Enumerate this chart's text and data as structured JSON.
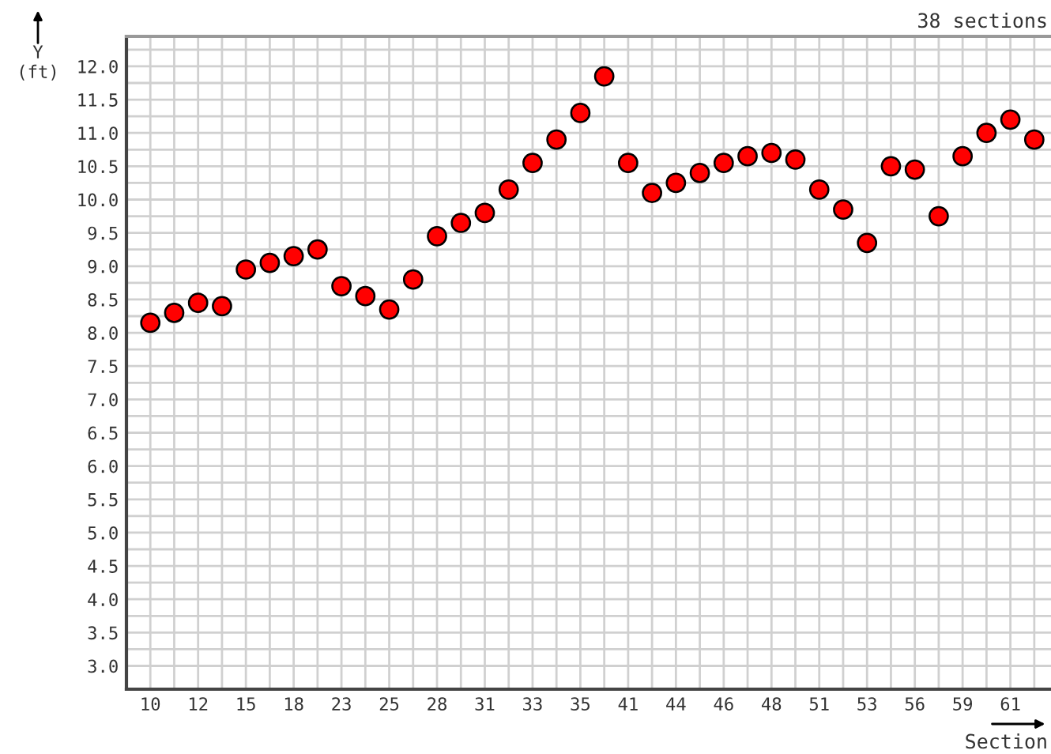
{
  "chart_data": {
    "type": "scatter",
    "ylabel": "Y\n(ft)",
    "xlabel": "Section",
    "annotations": [
      "38 sections"
    ],
    "categories": [
      "10",
      null,
      "12",
      null,
      "15",
      null,
      "18",
      null,
      "23",
      null,
      "25",
      null,
      "28",
      null,
      "31",
      null,
      "33",
      null,
      "35",
      null,
      "41",
      null,
      "44",
      null,
      "46",
      null,
      "48",
      null,
      "51",
      null,
      "53",
      null,
      "56",
      null,
      "59",
      null,
      "61",
      null
    ],
    "series": [
      {
        "color": "#ff0000",
        "values": [
          8.15,
          8.3,
          8.45,
          8.4,
          8.95,
          9.05,
          9.15,
          9.25,
          8.7,
          8.55,
          8.35,
          8.8,
          9.45,
          9.65,
          9.8,
          10.15,
          10.55,
          10.9,
          11.3,
          11.85,
          10.55,
          10.1,
          10.25,
          10.4,
          10.55,
          10.65,
          10.7,
          10.6,
          10.15,
          9.85,
          9.35,
          10.5,
          10.45,
          9.75,
          10.65,
          11.0,
          11.2,
          10.9
        ]
      }
    ],
    "ylim": [
      2.65,
      12.45
    ],
    "yticks": [
      {
        "value": 3,
        "label": "3.0"
      },
      {
        "value": 3.25,
        "label": null
      },
      {
        "value": 3.5,
        "label": "3.5"
      },
      {
        "value": 3.75,
        "label": null
      },
      {
        "value": 4,
        "label": "4.0"
      },
      {
        "value": 4.25,
        "label": null
      },
      {
        "value": 4.5,
        "label": "4.5"
      },
      {
        "value": 4.75,
        "label": null
      },
      {
        "value": 5,
        "label": "5.0"
      },
      {
        "value": 5.25,
        "label": null
      },
      {
        "value": 5.5,
        "label": "5.5"
      },
      {
        "value": 5.75,
        "label": null
      },
      {
        "value": 6,
        "label": "6.0"
      },
      {
        "value": 6.25,
        "label": null
      },
      {
        "value": 6.5,
        "label": "6.5"
      },
      {
        "value": 6.75,
        "label": null
      },
      {
        "value": 7,
        "label": "7.0"
      },
      {
        "value": 7.25,
        "label": null
      },
      {
        "value": 7.5,
        "label": "7.5"
      },
      {
        "value": 7.75,
        "label": null
      },
      {
        "value": 8,
        "label": "8.0"
      },
      {
        "value": 8.25,
        "label": null
      },
      {
        "value": 8.5,
        "label": "8.5"
      },
      {
        "value": 8.75,
        "label": null
      },
      {
        "value": 9,
        "label": "9.0"
      },
      {
        "value": 9.25,
        "label": null
      },
      {
        "value": 9.5,
        "label": "9.5"
      },
      {
        "value": 9.75,
        "label": null
      },
      {
        "value": 10,
        "label": "10.0"
      },
      {
        "value": 10.25,
        "label": null
      },
      {
        "value": 10.5,
        "label": "10.5"
      },
      {
        "value": 10.75,
        "label": null
      },
      {
        "value": 11,
        "label": "11.0"
      },
      {
        "value": 11.25,
        "label": null
      },
      {
        "value": 11.5,
        "label": "11.5"
      },
      {
        "value": 11.75,
        "label": null
      },
      {
        "value": 12,
        "label": "12.0"
      },
      {
        "value": 12.25,
        "label": null
      }
    ],
    "grid": true,
    "marker": "circle",
    "legend": false
  }
}
